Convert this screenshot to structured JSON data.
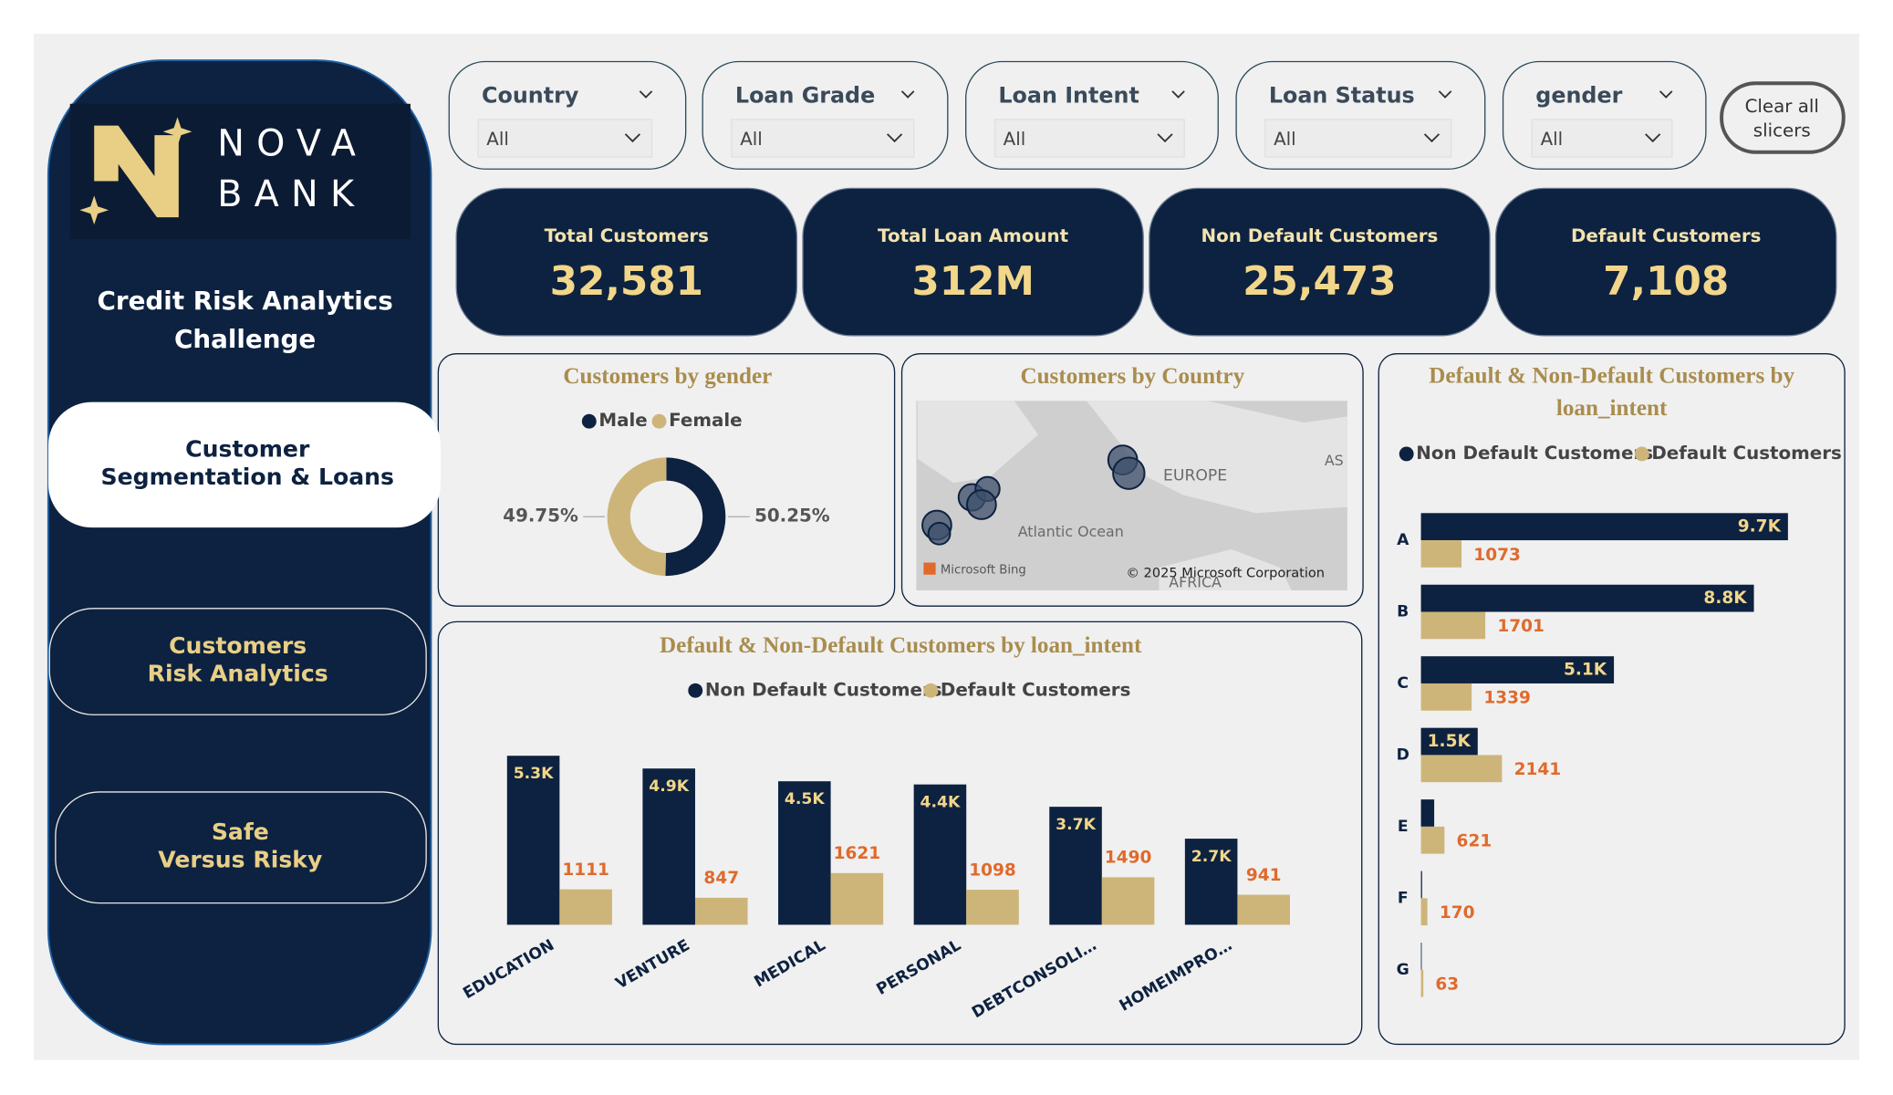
{
  "nav": {
    "brand": [
      "NOVA",
      "BANK"
    ],
    "title": [
      "Credit Risk Analytics",
      "Challenge"
    ],
    "pages": [
      [
        "Customer",
        "Segmentation & Loans"
      ],
      [
        "Customers",
        "Risk Analytics"
      ],
      [
        "Safe",
        "Versus Risky"
      ]
    ]
  },
  "slicers": [
    {
      "label": "Country",
      "value": "All"
    },
    {
      "label": "Loan Grade",
      "value": "All"
    },
    {
      "label": "Loan Intent",
      "value": "All"
    },
    {
      "label": "Loan Status",
      "value": "All"
    },
    {
      "label": "gender",
      "value": "All"
    }
  ],
  "clear_button": [
    "Clear all",
    "slicers"
  ],
  "kpis": [
    {
      "label": "Total Customers",
      "value": "32,581"
    },
    {
      "label": "Total Loan Amount",
      "value": "312M"
    },
    {
      "label": "Non Default Customers",
      "value": "25,473"
    },
    {
      "label": "Default Customers",
      "value": "7,108"
    }
  ],
  "map": {
    "title": "Customers by Country",
    "labels": [
      "EUROPE",
      "Atlantic Ocean",
      "AFRICA",
      "AS"
    ],
    "credits": [
      "Microsoft Bing",
      "© 2025 Microsoft Corporation"
    ]
  },
  "chart_data": [
    {
      "type": "donut",
      "title": "Customers by gender",
      "categories": [
        "Male",
        "Female"
      ],
      "values": [
        50.25,
        49.75
      ],
      "value_labels": [
        "50.25%",
        "49.75%"
      ],
      "colors": [
        "#0d2240",
        "#cdb57a"
      ]
    },
    {
      "type": "bar",
      "title": "Default & Non-Default Customers by loan_intent",
      "categories": [
        "EDUCATION",
        "VENTURE",
        "MEDICAL",
        "PERSONAL",
        "DEBTCONSOLI…",
        "HOMEIMPRO…"
      ],
      "series": [
        {
          "name": "Non Default Customers",
          "color": "#0d2240",
          "values": [
            5300,
            4900,
            4500,
            4400,
            3700,
            2700
          ],
          "value_labels": [
            "5.3K",
            "4.9K",
            "4.5K",
            "4.4K",
            "3.7K",
            "2.7K"
          ]
        },
        {
          "name": "Default Customers",
          "color": "#cdb57a",
          "values": [
            1111,
            847,
            1621,
            1098,
            1490,
            941
          ]
        }
      ]
    },
    {
      "type": "barh",
      "title": "Default & Non-Default Customers by loan_intent",
      "categories": [
        "A",
        "B",
        "C",
        "D",
        "E",
        "F",
        "G"
      ],
      "series": [
        {
          "name": "Non Default Customers",
          "color": "#0d2240",
          "values": [
            9700,
            8800,
            5100,
            1500,
            350,
            30,
            20
          ],
          "value_labels": [
            "9.7K",
            "8.8K",
            "5.1K",
            "1.5K",
            null,
            null,
            null
          ]
        },
        {
          "name": "Default Customers",
          "color": "#cdb57a",
          "values": [
            1073,
            1701,
            1339,
            2141,
            621,
            170,
            63
          ]
        }
      ]
    }
  ]
}
